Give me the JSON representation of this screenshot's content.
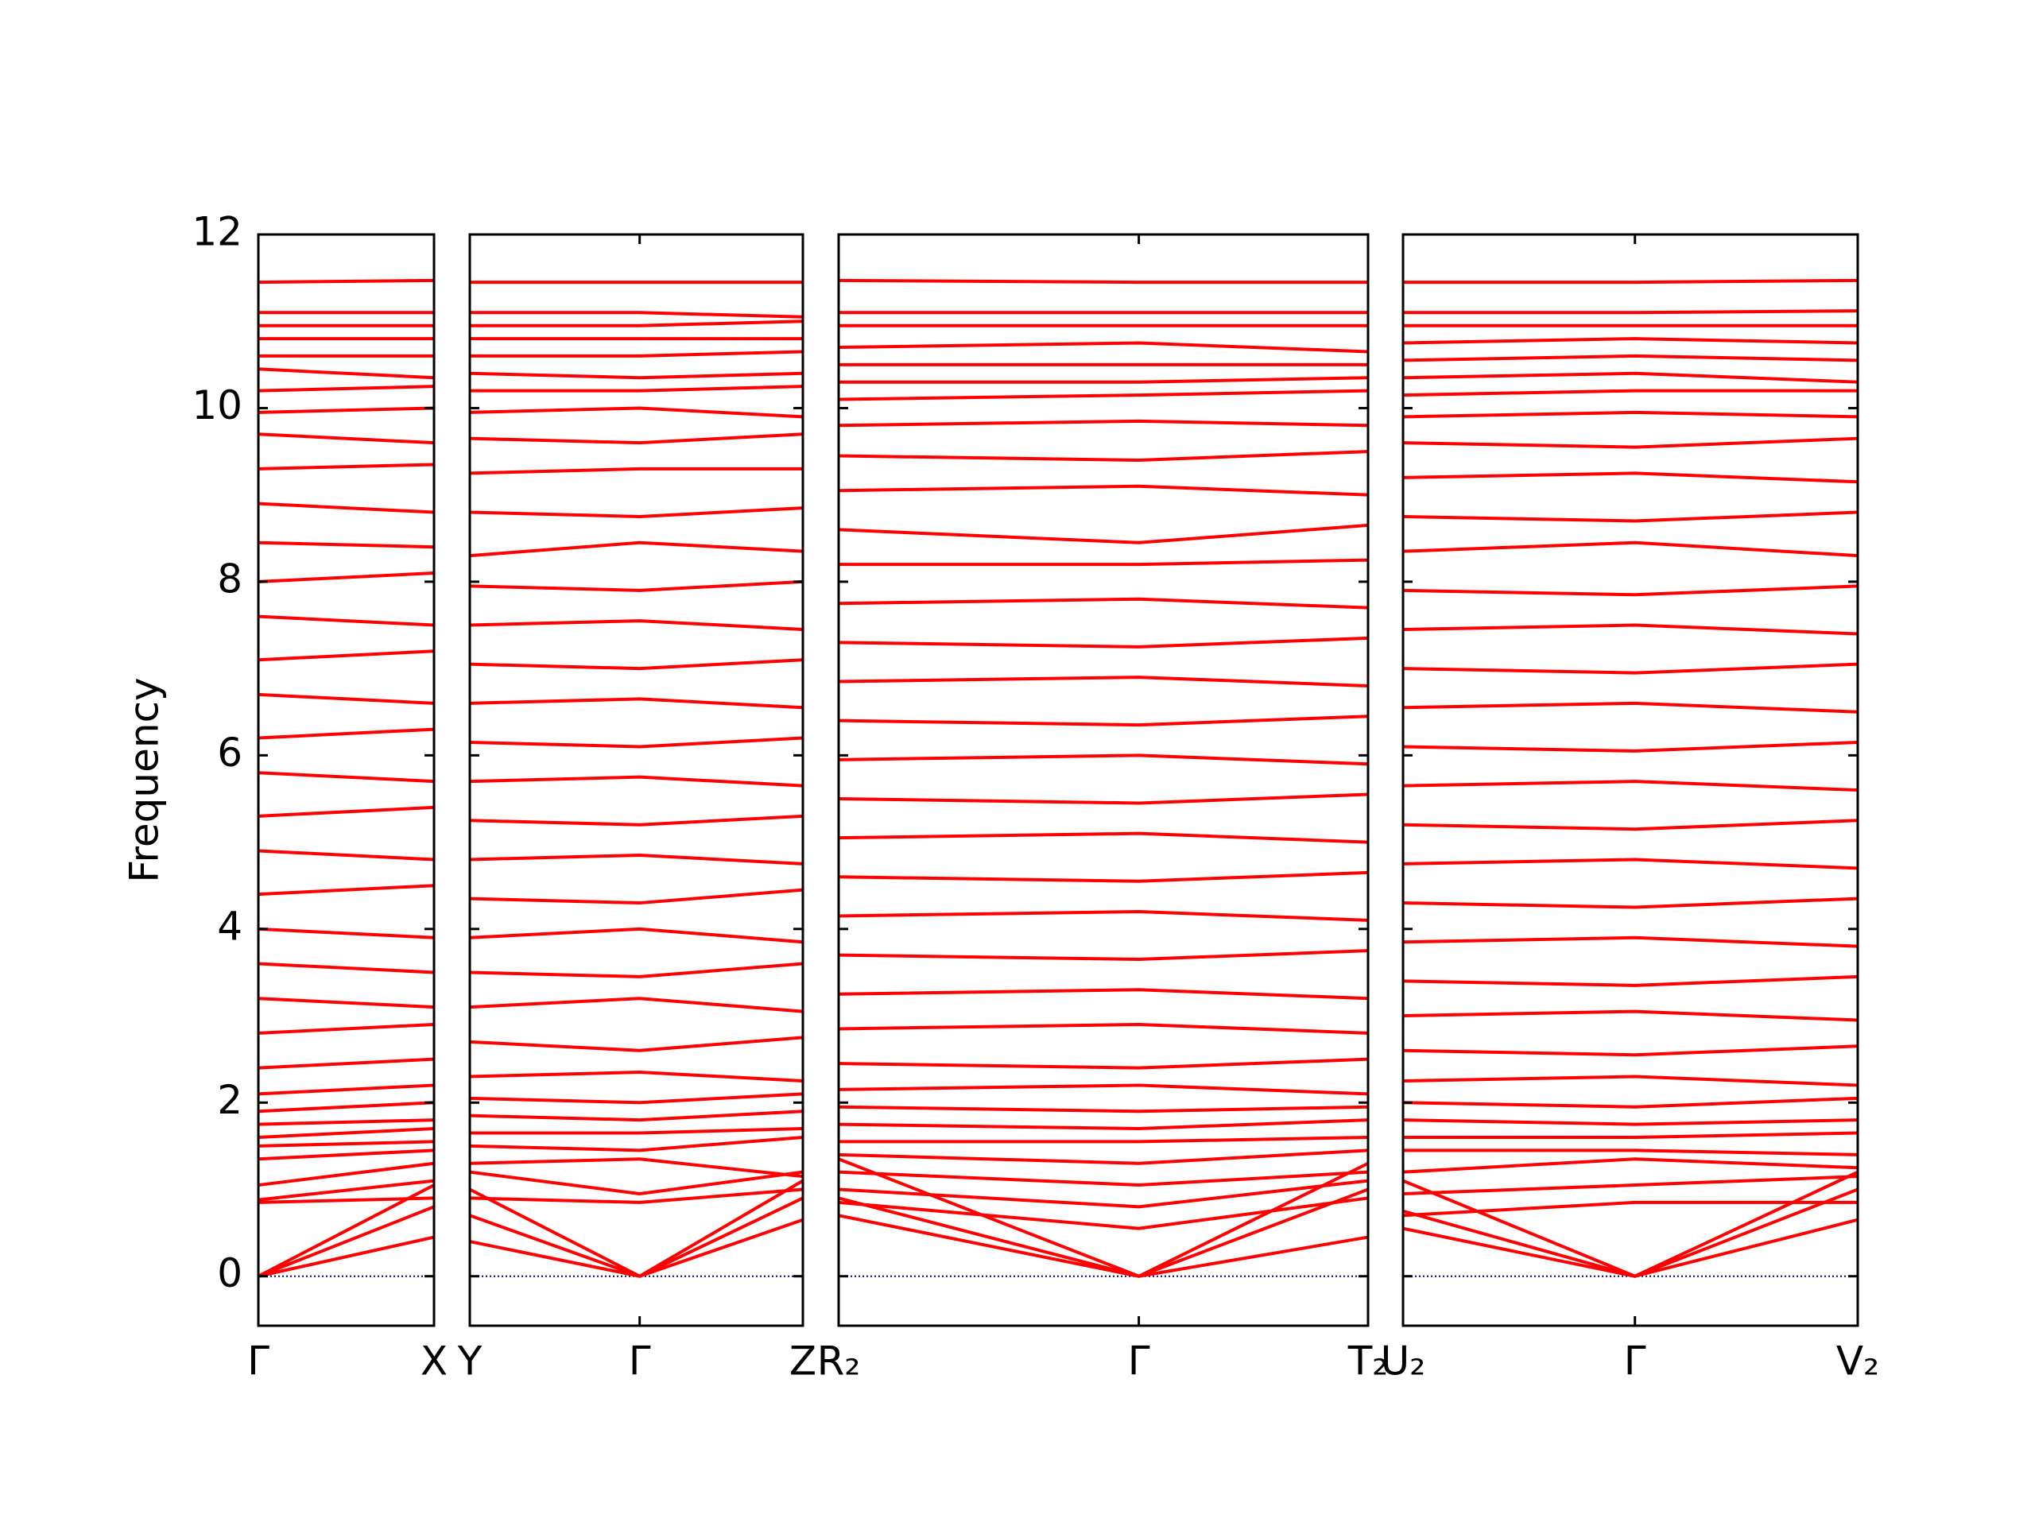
{
  "chart_data": [
    {
      "type": "line",
      "ylabel": "Frequency",
      "color": "#ff0000",
      "hline": 0,
      "hline_color": "#00008b",
      "xlim": [
        0,
        1
      ],
      "ylim": [
        -0.57,
        12
      ],
      "yticks": [
        0,
        2,
        4,
        6,
        8,
        10,
        12
      ],
      "xticks": [
        {
          "value": 0,
          "label": "Γ"
        },
        {
          "value": 1,
          "label": "X"
        }
      ],
      "x": [
        0,
        1
      ],
      "series": [
        {
          "values": [
            0,
            0.45
          ]
        },
        {
          "values": [
            0,
            0.8
          ]
        },
        {
          "values": [
            0,
            1.05
          ]
        },
        {
          "values": [
            0.85,
            0.9
          ]
        },
        {
          "values": [
            0.88,
            1.1
          ]
        },
        {
          "values": [
            1.05,
            1.3
          ]
        },
        {
          "values": [
            1.35,
            1.45
          ]
        },
        {
          "values": [
            1.5,
            1.55
          ]
        },
        {
          "values": [
            1.6,
            1.7
          ]
        },
        {
          "values": [
            1.75,
            1.8
          ]
        },
        {
          "values": [
            1.9,
            2.0
          ]
        },
        {
          "values": [
            2.1,
            2.2
          ]
        },
        {
          "values": [
            2.4,
            2.5
          ]
        },
        {
          "values": [
            2.8,
            2.9
          ]
        },
        {
          "values": [
            3.2,
            3.1
          ]
        },
        {
          "values": [
            3.6,
            3.5
          ]
        },
        {
          "values": [
            4.0,
            3.9
          ]
        },
        {
          "values": [
            4.4,
            4.5
          ]
        },
        {
          "values": [
            4.9,
            4.8
          ]
        },
        {
          "values": [
            5.3,
            5.4
          ]
        },
        {
          "values": [
            5.8,
            5.7
          ]
        },
        {
          "values": [
            6.2,
            6.3
          ]
        },
        {
          "values": [
            6.7,
            6.6
          ]
        },
        {
          "values": [
            7.1,
            7.2
          ]
        },
        {
          "values": [
            7.6,
            7.5
          ]
        },
        {
          "values": [
            8.0,
            8.1
          ]
        },
        {
          "values": [
            8.45,
            8.4
          ]
        },
        {
          "values": [
            8.9,
            8.8
          ]
        },
        {
          "values": [
            9.3,
            9.35
          ]
        },
        {
          "values": [
            9.7,
            9.6
          ]
        },
        {
          "values": [
            9.95,
            10.0
          ]
        },
        {
          "values": [
            10.2,
            10.25
          ]
        },
        {
          "values": [
            10.45,
            10.35
          ]
        },
        {
          "values": [
            10.6,
            10.6
          ]
        },
        {
          "values": [
            10.8,
            10.8
          ]
        },
        {
          "values": [
            10.95,
            10.95
          ]
        },
        {
          "values": [
            11.1,
            11.1
          ]
        },
        {
          "values": [
            11.45,
            11.47
          ]
        }
      ]
    },
    {
      "type": "line",
      "color": "#ff0000",
      "hline": 0,
      "hline_color": "#00008b",
      "xlim": [
        0,
        1
      ],
      "ylim": [
        -0.57,
        12
      ],
      "xticks": [
        {
          "value": 0,
          "label": "Y"
        },
        {
          "value": 0.51,
          "label": "Γ"
        },
        {
          "value": 1,
          "label": "Z"
        }
      ],
      "x": [
        0,
        0.51,
        1
      ],
      "series": [
        {
          "values": [
            0.4,
            0,
            0.65
          ]
        },
        {
          "values": [
            0.7,
            0,
            0.9
          ]
        },
        {
          "values": [
            1.0,
            0,
            1.1
          ]
        },
        {
          "values": [
            0.9,
            0.85,
            1.0
          ]
        },
        {
          "values": [
            1.2,
            0.95,
            1.2
          ]
        },
        {
          "values": [
            1.3,
            1.35,
            1.15
          ]
        },
        {
          "values": [
            1.5,
            1.45,
            1.6
          ]
        },
        {
          "values": [
            1.65,
            1.65,
            1.7
          ]
        },
        {
          "values": [
            1.85,
            1.8,
            1.9
          ]
        },
        {
          "values": [
            2.05,
            2.0,
            2.1
          ]
        },
        {
          "values": [
            2.3,
            2.35,
            2.25
          ]
        },
        {
          "values": [
            2.7,
            2.6,
            2.75
          ]
        },
        {
          "values": [
            3.1,
            3.2,
            3.05
          ]
        },
        {
          "values": [
            3.5,
            3.45,
            3.6
          ]
        },
        {
          "values": [
            3.9,
            4.0,
            3.85
          ]
        },
        {
          "values": [
            4.35,
            4.3,
            4.45
          ]
        },
        {
          "values": [
            4.8,
            4.85,
            4.75
          ]
        },
        {
          "values": [
            5.25,
            5.2,
            5.3
          ]
        },
        {
          "values": [
            5.7,
            5.75,
            5.65
          ]
        },
        {
          "values": [
            6.15,
            6.1,
            6.2
          ]
        },
        {
          "values": [
            6.6,
            6.65,
            6.55
          ]
        },
        {
          "values": [
            7.05,
            7.0,
            7.1
          ]
        },
        {
          "values": [
            7.5,
            7.55,
            7.45
          ]
        },
        {
          "values": [
            7.95,
            7.9,
            8.0
          ]
        },
        {
          "values": [
            8.3,
            8.45,
            8.35
          ]
        },
        {
          "values": [
            8.8,
            8.75,
            8.85
          ]
        },
        {
          "values": [
            9.25,
            9.3,
            9.3
          ]
        },
        {
          "values": [
            9.65,
            9.6,
            9.7
          ]
        },
        {
          "values": [
            9.95,
            10.0,
            9.9
          ]
        },
        {
          "values": [
            10.2,
            10.2,
            10.25
          ]
        },
        {
          "values": [
            10.4,
            10.35,
            10.4
          ]
        },
        {
          "values": [
            10.6,
            10.6,
            10.65
          ]
        },
        {
          "values": [
            10.8,
            10.8,
            10.8
          ]
        },
        {
          "values": [
            10.95,
            10.95,
            11.0
          ]
        },
        {
          "values": [
            11.1,
            11.1,
            11.05
          ]
        },
        {
          "values": [
            11.45,
            11.45,
            11.45
          ]
        }
      ]
    },
    {
      "type": "line",
      "color": "#ff0000",
      "hline": 0,
      "hline_color": "#00008b",
      "xlim": [
        0,
        1
      ],
      "ylim": [
        -0.57,
        12
      ],
      "xticks": [
        {
          "value": 0,
          "label": "R₂"
        },
        {
          "value": 0.567,
          "label": "Γ"
        },
        {
          "value": 1,
          "label": "T₂"
        }
      ],
      "x": [
        0,
        0.567,
        1
      ],
      "series": [
        {
          "values": [
            0.7,
            0,
            0.45
          ]
        },
        {
          "values": [
            0.9,
            0,
            1.0
          ]
        },
        {
          "values": [
            1.35,
            0,
            1.3
          ]
        },
        {
          "values": [
            0.85,
            0.55,
            0.9
          ]
        },
        {
          "values": [
            1.0,
            0.8,
            1.1
          ]
        },
        {
          "values": [
            1.2,
            1.05,
            1.2
          ]
        },
        {
          "values": [
            1.4,
            1.3,
            1.45
          ]
        },
        {
          "values": [
            1.55,
            1.55,
            1.6
          ]
        },
        {
          "values": [
            1.75,
            1.7,
            1.8
          ]
        },
        {
          "values": [
            1.95,
            1.9,
            1.95
          ]
        },
        {
          "values": [
            2.15,
            2.2,
            2.1
          ]
        },
        {
          "values": [
            2.45,
            2.4,
            2.5
          ]
        },
        {
          "values": [
            2.85,
            2.9,
            2.8
          ]
        },
        {
          "values": [
            3.25,
            3.3,
            3.2
          ]
        },
        {
          "values": [
            3.7,
            3.65,
            3.75
          ]
        },
        {
          "values": [
            4.15,
            4.2,
            4.1
          ]
        },
        {
          "values": [
            4.6,
            4.55,
            4.65
          ]
        },
        {
          "values": [
            5.05,
            5.1,
            5.0
          ]
        },
        {
          "values": [
            5.5,
            5.45,
            5.55
          ]
        },
        {
          "values": [
            5.95,
            6.0,
            5.9
          ]
        },
        {
          "values": [
            6.4,
            6.35,
            6.45
          ]
        },
        {
          "values": [
            6.85,
            6.9,
            6.8
          ]
        },
        {
          "values": [
            7.3,
            7.25,
            7.35
          ]
        },
        {
          "values": [
            7.75,
            7.8,
            7.7
          ]
        },
        {
          "values": [
            8.2,
            8.2,
            8.25
          ]
        },
        {
          "values": [
            8.6,
            8.45,
            8.65
          ]
        },
        {
          "values": [
            9.05,
            9.1,
            9.0
          ]
        },
        {
          "values": [
            9.45,
            9.4,
            9.5
          ]
        },
        {
          "values": [
            9.8,
            9.85,
            9.8
          ]
        },
        {
          "values": [
            10.1,
            10.15,
            10.2
          ]
        },
        {
          "values": [
            10.3,
            10.3,
            10.35
          ]
        },
        {
          "values": [
            10.5,
            10.5,
            10.5
          ]
        },
        {
          "values": [
            10.7,
            10.75,
            10.65
          ]
        },
        {
          "values": [
            10.95,
            10.95,
            10.95
          ]
        },
        {
          "values": [
            11.1,
            11.1,
            11.1
          ]
        },
        {
          "values": [
            11.47,
            11.45,
            11.45
          ]
        }
      ]
    },
    {
      "type": "line",
      "color": "#ff0000",
      "hline": 0,
      "hline_color": "#00008b",
      "xlim": [
        0,
        1
      ],
      "ylim": [
        -0.57,
        12
      ],
      "xticks": [
        {
          "value": 0,
          "label": "U₂"
        },
        {
          "value": 0.51,
          "label": "Γ"
        },
        {
          "value": 1,
          "label": "V₂"
        }
      ],
      "x": [
        0,
        0.51,
        1
      ],
      "series": [
        {
          "values": [
            0.55,
            0,
            0.65
          ]
        },
        {
          "values": [
            0.75,
            0,
            1.2
          ]
        },
        {
          "values": [
            1.1,
            0,
            1.0
          ]
        },
        {
          "values": [
            0.7,
            0.85,
            0.85
          ]
        },
        {
          "values": [
            0.95,
            1.05,
            1.15
          ]
        },
        {
          "values": [
            1.2,
            1.35,
            1.25
          ]
        },
        {
          "values": [
            1.45,
            1.45,
            1.4
          ]
        },
        {
          "values": [
            1.6,
            1.6,
            1.65
          ]
        },
        {
          "values": [
            1.8,
            1.75,
            1.8
          ]
        },
        {
          "values": [
            2.0,
            1.95,
            2.05
          ]
        },
        {
          "values": [
            2.25,
            2.3,
            2.2
          ]
        },
        {
          "values": [
            2.6,
            2.55,
            2.65
          ]
        },
        {
          "values": [
            3.0,
            3.05,
            2.95
          ]
        },
        {
          "values": [
            3.4,
            3.35,
            3.45
          ]
        },
        {
          "values": [
            3.85,
            3.9,
            3.8
          ]
        },
        {
          "values": [
            4.3,
            4.25,
            4.35
          ]
        },
        {
          "values": [
            4.75,
            4.8,
            4.7
          ]
        },
        {
          "values": [
            5.2,
            5.15,
            5.25
          ]
        },
        {
          "values": [
            5.65,
            5.7,
            5.6
          ]
        },
        {
          "values": [
            6.1,
            6.05,
            6.15
          ]
        },
        {
          "values": [
            6.55,
            6.6,
            6.5
          ]
        },
        {
          "values": [
            7.0,
            6.95,
            7.05
          ]
        },
        {
          "values": [
            7.45,
            7.5,
            7.4
          ]
        },
        {
          "values": [
            7.9,
            7.85,
            7.95
          ]
        },
        {
          "values": [
            8.35,
            8.45,
            8.3
          ]
        },
        {
          "values": [
            8.75,
            8.7,
            8.8
          ]
        },
        {
          "values": [
            9.2,
            9.25,
            9.15
          ]
        },
        {
          "values": [
            9.6,
            9.55,
            9.65
          ]
        },
        {
          "values": [
            9.9,
            9.95,
            9.9
          ]
        },
        {
          "values": [
            10.15,
            10.2,
            10.2
          ]
        },
        {
          "values": [
            10.35,
            10.4,
            10.3
          ]
        },
        {
          "values": [
            10.55,
            10.6,
            10.55
          ]
        },
        {
          "values": [
            10.75,
            10.8,
            10.75
          ]
        },
        {
          "values": [
            10.95,
            10.95,
            10.95
          ]
        },
        {
          "values": [
            11.1,
            11.1,
            11.12
          ]
        },
        {
          "values": [
            11.45,
            11.45,
            11.47
          ]
        }
      ]
    }
  ]
}
